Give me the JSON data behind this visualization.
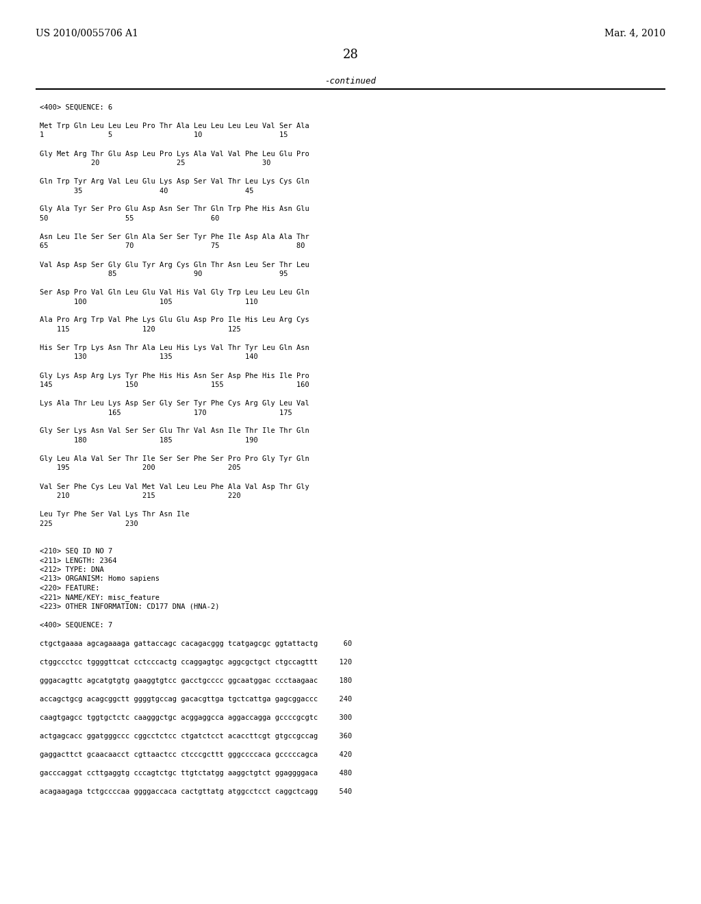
{
  "background_color": "#ffffff",
  "header_left": "US 2010/0055706 A1",
  "header_right": "Mar. 4, 2010",
  "page_number": "28",
  "continued_text": "-continued",
  "content_lines": [
    "<400> SEQUENCE: 6",
    "",
    "Met Trp Gln Leu Leu Leu Pro Thr Ala Leu Leu Leu Leu Val Ser Ala",
    "1               5                   10                  15",
    "",
    "Gly Met Arg Thr Glu Asp Leu Pro Lys Ala Val Val Phe Leu Glu Pro",
    "            20                  25                  30",
    "",
    "Gln Trp Tyr Arg Val Leu Glu Lys Asp Ser Val Thr Leu Lys Cys Gln",
    "        35                  40                  45",
    "",
    "Gly Ala Tyr Ser Pro Glu Asp Asn Ser Thr Gln Trp Phe His Asn Glu",
    "50                  55                  60",
    "",
    "Asn Leu Ile Ser Ser Gln Ala Ser Ser Tyr Phe Ile Asp Ala Ala Thr",
    "65                  70                  75                  80",
    "",
    "Val Asp Asp Ser Gly Glu Tyr Arg Cys Gln Thr Asn Leu Ser Thr Leu",
    "                85                  90                  95",
    "",
    "Ser Asp Pro Val Gln Leu Glu Val His Val Gly Trp Leu Leu Leu Gln",
    "        100                 105                 110",
    "",
    "Ala Pro Arg Trp Val Phe Lys Glu Glu Asp Pro Ile His Leu Arg Cys",
    "    115                 120                 125",
    "",
    "His Ser Trp Lys Asn Thr Ala Leu His Lys Val Thr Tyr Leu Gln Asn",
    "        130                 135                 140",
    "",
    "Gly Lys Asp Arg Lys Tyr Phe His His Asn Ser Asp Phe His Ile Pro",
    "145                 150                 155                 160",
    "",
    "Lys Ala Thr Leu Lys Asp Ser Gly Ser Tyr Phe Cys Arg Gly Leu Val",
    "                165                 170                 175",
    "",
    "Gly Ser Lys Asn Val Ser Ser Glu Thr Val Asn Ile Thr Ile Thr Gln",
    "        180                 185                 190",
    "",
    "Gly Leu Ala Val Ser Thr Ile Ser Ser Phe Ser Pro Pro Gly Tyr Gln",
    "    195                 200                 205",
    "",
    "Val Ser Phe Cys Leu Val Met Val Leu Leu Phe Ala Val Asp Thr Gly",
    "    210                 215                 220",
    "",
    "Leu Tyr Phe Ser Val Lys Thr Asn Ile",
    "225                 230",
    "",
    "",
    "<210> SEQ ID NO 7",
    "<211> LENGTH: 2364",
    "<212> TYPE: DNA",
    "<213> ORGANISM: Homo sapiens",
    "<220> FEATURE:",
    "<221> NAME/KEY: misc_feature",
    "<223> OTHER INFORMATION: CD177 DNA (HNA-2)",
    "",
    "<400> SEQUENCE: 7",
    "",
    "ctgctgaaaa agcagaaaga gattaccagc cacagacggg tcatgagcgc ggtattactg      60",
    "",
    "ctggccctcc tggggttcat cctcccactg ccaggagtgc aggcgctgct ctgccagttt     120",
    "",
    "gggacagttc agcatgtgtg gaaggtgtcc gacctgcccc ggcaatggac ccctaagaac     180",
    "",
    "accagctgcg acagcggctt ggggtgccag gacacgttga tgctcattga gagcggaccc     240",
    "",
    "caagtgagcc tggtgctctc caagggctgc acggaggcca aggaccagga gccccgcgtc     300",
    "",
    "actgagcacc ggatgggccc cggcctctcc ctgatctcct acaccttcgt gtgccgccag     360",
    "",
    "gaggacttct gcaacaacct cgttaactcc ctcccgcttt gggccccaca gcccccagca     420",
    "",
    "gacccaggat ccttgaggtg cccagtctgc ttgtctatgg aaggctgtct ggaggggaca     480",
    "",
    "acagaagaga tctgccccaa ggggaccaca cactgttatg atggcctcct caggctcagg     540"
  ]
}
